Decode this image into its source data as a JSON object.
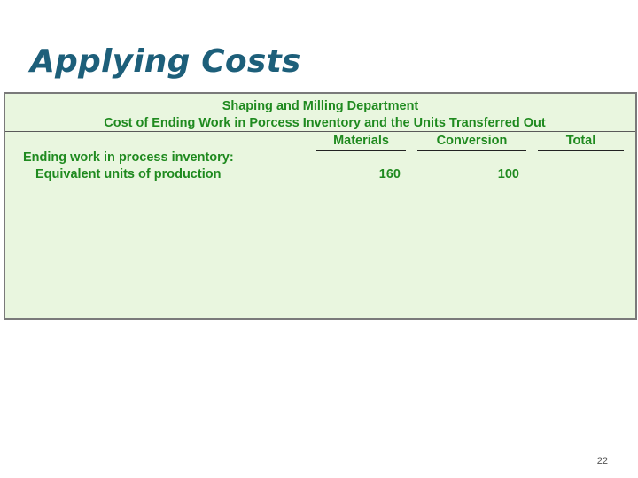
{
  "slide": {
    "title": "Applying Costs",
    "page_number": "22"
  },
  "report": {
    "header_line_1": "Shaping and Milling Department",
    "header_line_2": "Cost of Ending Work in Porcess Inventory and the Units Transferred Out",
    "columns": [
      "Materials",
      "Conversion",
      "Total"
    ],
    "rows": [
      {
        "label": "Ending work in process inventory:",
        "materials": "",
        "conversion": "",
        "total": ""
      },
      {
        "label": "Equivalent units of production",
        "materials": "160",
        "conversion": "100",
        "total": ""
      }
    ]
  },
  "colors": {
    "title": "#1d5f7a",
    "report_text": "#1f8a1f",
    "panel_background": "#e9f6df"
  }
}
